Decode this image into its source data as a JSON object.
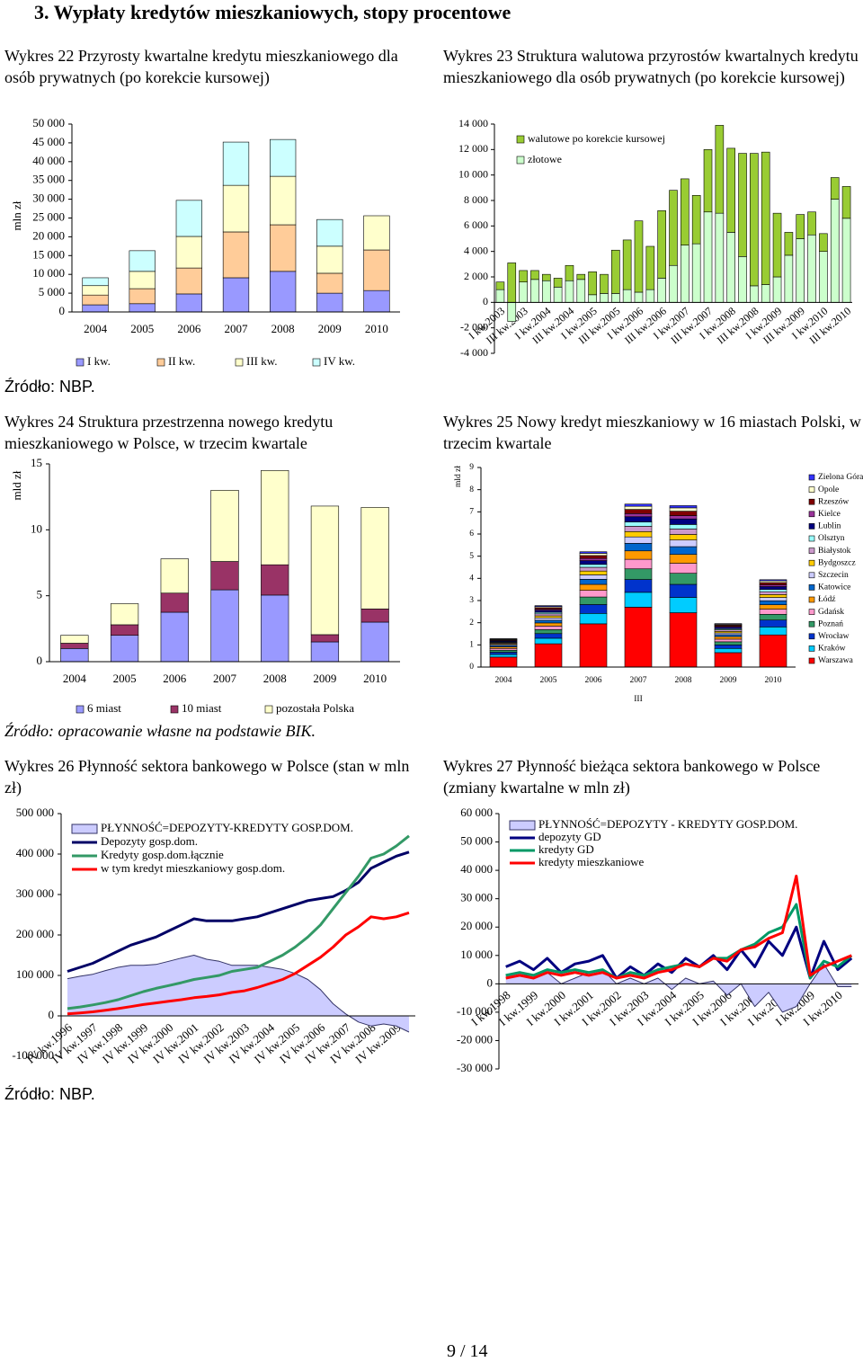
{
  "title": "3.  Wypłaty kredytów mieszkaniowych, stopy procentowe",
  "page_number": "9 / 14",
  "chart_data": [
    {
      "type": "bar",
      "stacked": true,
      "title": "Wykres 22 Przyrosty kwartalne kredytu mieszkaniowego dla osób prywatnych (po korekcie kursowej)",
      "source": "Źródło: NBP.",
      "y_label": "mln zł",
      "categories": [
        "2004",
        "2005",
        "2006",
        "2007",
        "2008",
        "2009",
        "2010"
      ],
      "series": [
        {
          "name": "I kw.",
          "color": "#9999ff",
          "values": [
            1900,
            2200,
            4800,
            9100,
            10800,
            5000,
            5700
          ]
        },
        {
          "name": "II kw.",
          "color": "#ffcc99",
          "values": [
            2600,
            4000,
            6900,
            12200,
            12400,
            5300,
            10800
          ]
        },
        {
          "name": "III kw.",
          "color": "#ffffcc",
          "values": [
            2500,
            4600,
            8400,
            12400,
            12900,
            7200,
            9100
          ]
        },
        {
          "name": "IV kw.",
          "color": "#ccffff",
          "values": [
            2100,
            5500,
            9600,
            11500,
            9800,
            7100,
            null
          ]
        }
      ],
      "ylim": [
        0,
        50000
      ],
      "yticks": [
        0,
        {
          "value": 5000,
          "label": "5 000"
        },
        {
          "value": 10000,
          "label": "10 000"
        },
        {
          "value": 15000,
          "label": "15 000"
        },
        {
          "value": 20000,
          "label": "20 000"
        },
        {
          "value": 25000,
          "label": "25 000"
        },
        {
          "value": 30000,
          "label": "30 000"
        },
        {
          "value": 35000,
          "label": "35 000"
        },
        {
          "value": 40000,
          "label": "40 000"
        },
        {
          "value": 45000,
          "label": "45 000"
        },
        {
          "value": 50000,
          "label": "50 000"
        }
      ]
    },
    {
      "type": "bar",
      "stacked": true,
      "title": "Wykres 23 Struktura walutowa przyrostów kwartalnych kredytu mieszkaniowego dla osób prywatnych (po korekcie kursowej)",
      "categories": [
        "I kw.2003",
        null,
        "III kw.2003",
        null,
        "I kw.2004",
        null,
        "III kw.2004",
        null,
        "I kw.2005",
        null,
        "III kw.2005",
        null,
        "I kw.2006",
        null,
        "III kw.2006",
        null,
        "I kw.2007",
        null,
        "III kw.2007",
        null,
        "I kw.2008",
        null,
        "III kw.2008",
        null,
        "I kw.2009",
        null,
        "III kw.2009",
        null,
        "I kw.2010",
        null,
        "III kw.2010"
      ],
      "series": [
        {
          "name": "złotowe",
          "color": "#ccffcc",
          "values": [
            1000,
            -1500,
            1600,
            1800,
            1700,
            1200,
            1700,
            1800,
            600,
            700,
            700,
            1000,
            800,
            1000,
            1900,
            2900,
            4500,
            4600,
            7100,
            7000,
            5500,
            3600,
            1300,
            1400,
            2000,
            3700,
            5000,
            5300,
            4000,
            8100,
            6600
          ]
        },
        {
          "name": "walutowe po korekcie kursowej",
          "color": "#99cc33",
          "values": [
            600,
            3100,
            900,
            700,
            500,
            700,
            1200,
            400,
            1800,
            1500,
            3400,
            3900,
            5600,
            3400,
            5300,
            5900,
            5200,
            3800,
            4900,
            6900,
            6600,
            8100,
            10400,
            10400,
            5000,
            1800,
            1900,
            1800,
            1400,
            1700,
            2500
          ]
        }
      ],
      "ylim": [
        -4000,
        14000
      ],
      "yticks": [
        {
          "value": -4000,
          "label": "-4 000"
        },
        {
          "value": -2000,
          "label": "-2 000"
        },
        0,
        {
          "value": 2000,
          "label": "2 000"
        },
        {
          "value": 4000,
          "label": "4 000"
        },
        {
          "value": 6000,
          "label": "6 000"
        },
        {
          "value": 8000,
          "label": "8 000"
        },
        {
          "value": 10000,
          "label": "10 000"
        },
        {
          "value": 12000,
          "label": "12 000"
        },
        {
          "value": 14000,
          "label": "14 000"
        }
      ]
    },
    {
      "type": "bar",
      "stacked": true,
      "title": "Wykres 24 Struktura przestrzenna nowego kredytu mieszkaniowego w Polsce, w trzecim kwartale",
      "source": "Źródło: opracowanie własne na podstawie BIK.",
      "y_label": "mld zł",
      "categories": [
        "2004",
        "2005",
        "2006",
        "2007",
        "2008",
        "2009",
        "2010"
      ],
      "series": [
        {
          "name": "6 miast",
          "color": "#9999ff",
          "values": [
            1.0,
            2.0,
            3.75,
            5.45,
            5.05,
            1.5,
            3.0
          ]
        },
        {
          "name": "10 miast",
          "color": "#993366",
          "values": [
            0.4,
            0.8,
            1.45,
            2.15,
            2.3,
            0.55,
            1.0
          ]
        },
        {
          "name": "pozostała Polska",
          "color": "#ffffcc",
          "values": [
            0.6,
            1.6,
            2.6,
            5.4,
            7.15,
            9.75,
            7.7
          ]
        }
      ],
      "ylim": [
        0,
        15
      ],
      "yticks": [
        0,
        5,
        10,
        15
      ]
    },
    {
      "type": "bar",
      "stacked": true,
      "title": "Wykres 25 Nowy kredyt mieszkaniowy w 16 miastach Polski, w trzecim kwartale",
      "y_label": "mld zł",
      "x_label": "III",
      "categories": [
        "2004",
        "2005",
        "2006",
        "2007",
        "2008",
        "2009",
        "2010"
      ],
      "series": [
        {
          "name": "Warszawa",
          "color": "#ff0000",
          "values": [
            0.45,
            1.05,
            1.95,
            2.7,
            2.45,
            0.65,
            1.45
          ]
        },
        {
          "name": "Kraków",
          "color": "#00ccff",
          "values": [
            0.12,
            0.25,
            0.47,
            0.67,
            0.69,
            0.19,
            0.36
          ]
        },
        {
          "name": "Wrocław",
          "color": "#0033cc",
          "values": [
            0.1,
            0.21,
            0.4,
            0.58,
            0.59,
            0.16,
            0.31
          ]
        },
        {
          "name": "Poznań",
          "color": "#339966",
          "values": [
            0.09,
            0.18,
            0.34,
            0.48,
            0.5,
            0.14,
            0.26
          ]
        },
        {
          "name": "Gdańsk",
          "color": "#ff99cc",
          "values": [
            0.08,
            0.16,
            0.3,
            0.43,
            0.45,
            0.12,
            0.23
          ]
        },
        {
          "name": "Łódź",
          "color": "#ff9900",
          "values": [
            0.07,
            0.14,
            0.27,
            0.38,
            0.4,
            0.11,
            0.2
          ]
        },
        {
          "name": "Katowice",
          "color": "#0066cc",
          "values": [
            0.06,
            0.12,
            0.23,
            0.34,
            0.35,
            0.09,
            0.18
          ]
        },
        {
          "name": "Szczecin",
          "color": "#ccccff",
          "values": [
            0.05,
            0.11,
            0.2,
            0.29,
            0.3,
            0.08,
            0.15
          ]
        },
        {
          "name": "Bydgoszcz",
          "color": "#ffcc00",
          "values": [
            0.04,
            0.09,
            0.17,
            0.24,
            0.25,
            0.07,
            0.13
          ]
        },
        {
          "name": "Białystok",
          "color": "#cc99cc",
          "values": [
            0.04,
            0.09,
            0.17,
            0.24,
            0.25,
            0.07,
            0.13
          ]
        },
        {
          "name": "Olsztyn",
          "color": "#99ffff",
          "values": [
            0.03,
            0.07,
            0.13,
            0.19,
            0.2,
            0.05,
            0.1
          ]
        },
        {
          "name": "Lublin",
          "color": "#000080",
          "values": [
            0.04,
            0.09,
            0.17,
            0.24,
            0.25,
            0.07,
            0.13
          ]
        },
        {
          "name": "Kielce",
          "color": "#993399",
          "values": [
            0.03,
            0.05,
            0.1,
            0.14,
            0.15,
            0.04,
            0.08
          ]
        },
        {
          "name": "Rzeszów",
          "color": "#800000",
          "values": [
            0.03,
            0.07,
            0.13,
            0.19,
            0.2,
            0.05,
            0.1
          ]
        },
        {
          "name": "Opole",
          "color": "#ffffcc",
          "values": [
            0.03,
            0.05,
            0.1,
            0.14,
            0.15,
            0.04,
            0.08
          ]
        },
        {
          "name": "Zielona Góra",
          "color": "#3333ff",
          "values": [
            0.02,
            0.04,
            0.07,
            0.1,
            0.1,
            0.03,
            0.05
          ]
        }
      ],
      "ylim": [
        0,
        9
      ],
      "yticks": [
        0,
        1,
        2,
        3,
        4,
        5,
        6,
        7,
        8,
        9
      ]
    },
    {
      "type": "line",
      "title": "Wykres 26 Płynność sektora bankowego w Polsce (stan w mln zł)",
      "source": "Źródło: NBP.",
      "categories": [
        "IV kw.1996",
        null,
        "IV kw.1997",
        null,
        "IV kw.1998",
        null,
        "IV kw.1999",
        null,
        "IV kw.2000",
        null,
        "IV kw.2001",
        null,
        "IV kw.2002",
        null,
        "IV kw.2003",
        null,
        "IV kw.2004",
        null,
        "IV kw.2005",
        null,
        "IV kw.2006",
        null,
        "IV kw.2007",
        null,
        "IV kw.2008",
        null,
        "IV kw.2009",
        null
      ],
      "series": [
        {
          "name": "PŁYNNOŚĆ=DEPOZYTY-KREDYTY GOSP.DOM.",
          "area": true,
          "fill": "#ccccff",
          "color": "#333366",
          "values": [
            92000,
            98000,
            103000,
            112000,
            120000,
            125000,
            125000,
            127000,
            135000,
            143000,
            150000,
            140000,
            135000,
            125000,
            125000,
            125000,
            120000,
            115000,
            105000,
            90000,
            65000,
            30000,
            5000,
            -15000,
            -25000,
            -20000,
            -25000,
            -40000
          ]
        },
        {
          "name": "Depozyty gosp.dom.",
          "color": "#000066",
          "values": [
            110000,
            120000,
            130000,
            145000,
            160000,
            175000,
            185000,
            195000,
            210000,
            225000,
            240000,
            235000,
            235000,
            235000,
            240000,
            245000,
            255000,
            265000,
            275000,
            285000,
            290000,
            295000,
            310000,
            330000,
            365000,
            380000,
            395000,
            405000
          ]
        },
        {
          "name": "Kredyty gosp.dom.łącznie",
          "color": "#339966",
          "values": [
            18000,
            22000,
            27000,
            33000,
            40000,
            50000,
            60000,
            68000,
            75000,
            82000,
            90000,
            95000,
            100000,
            110000,
            115000,
            120000,
            135000,
            150000,
            170000,
            195000,
            225000,
            265000,
            305000,
            345000,
            390000,
            400000,
            420000,
            445000
          ]
        },
        {
          "name": "w tym kredyt mieszkaniowy gosp.dom.",
          "color": "#ff0000",
          "values": [
            5000,
            7000,
            10000,
            14000,
            18000,
            23000,
            28000,
            32000,
            36000,
            40000,
            45000,
            48000,
            52000,
            58000,
            62000,
            70000,
            80000,
            90000,
            105000,
            125000,
            145000,
            170000,
            200000,
            220000,
            245000,
            240000,
            245000,
            255000
          ]
        }
      ],
      "ylim": [
        -100000,
        500000
      ],
      "yticks": [
        {
          "value": -100000,
          "label": "-100 000"
        },
        0,
        {
          "value": 100000,
          "label": "100 000"
        },
        {
          "value": 200000,
          "label": "200 000"
        },
        {
          "value": 300000,
          "label": "300 000"
        },
        {
          "value": 400000,
          "label": "400 000"
        },
        {
          "value": 500000,
          "label": "500 000"
        }
      ]
    },
    {
      "type": "line",
      "title": "Wykres 27 Płynność bieżąca sektora bankowego w Polsce (zmiany kwartalne w mln zł)",
      "categories": [
        "I kw.1998",
        null,
        "I kw.1999",
        null,
        "I kw.2000",
        null,
        "I kw.2001",
        null,
        "I kw.2002",
        null,
        "I kw.2003",
        null,
        "I kw.2004",
        null,
        "I kw.2005",
        null,
        "I kw.2006",
        null,
        "I kw.2007",
        null,
        "I kw.2008",
        null,
        "I kw.2009",
        null,
        "I kw.2010",
        null
      ],
      "series": [
        {
          "name": "PŁYNNOŚĆ=DEPOZYTY - KREDYTY GOSP.DOM.",
          "area": true,
          "fill": "#ccccff",
          "color": "#333366",
          "values": [
            3000,
            4000,
            2000,
            4000,
            0,
            2000,
            4000,
            5000,
            0,
            2000,
            0,
            2000,
            -2000,
            2000,
            0,
            1000,
            -4000,
            0,
            -8000,
            -3000,
            -10000,
            -8000,
            0,
            7000,
            -1000,
            -1000
          ]
        },
        {
          "name": "depozyty GD",
          "color": "#000080",
          "values": [
            6000,
            8000,
            5000,
            9000,
            4000,
            7000,
            8000,
            10000,
            2000,
            6000,
            3000,
            7000,
            4000,
            9000,
            6000,
            10000,
            5000,
            12000,
            6000,
            15000,
            10000,
            20000,
            2000,
            15000,
            5000,
            9000
          ]
        },
        {
          "name": "kredyty GD",
          "color": "#009966",
          "values": [
            3000,
            4000,
            3000,
            5000,
            4000,
            5000,
            4000,
            5000,
            2000,
            4000,
            3000,
            5000,
            6000,
            7000,
            6000,
            9000,
            9000,
            12000,
            14000,
            18000,
            20000,
            28000,
            2000,
            8000,
            6000,
            10000
          ]
        },
        {
          "name": "kredyty mieszkaniowe",
          "color": "#ff0000",
          "values": [
            2000,
            3000,
            2000,
            4000,
            3000,
            4000,
            3000,
            4000,
            2000,
            3000,
            2000,
            4000,
            5000,
            7000,
            6000,
            9000,
            8000,
            12000,
            13000,
            16000,
            18000,
            38000,
            3000,
            6000,
            8000,
            10000
          ]
        }
      ],
      "ylim": [
        -30000,
        60000
      ],
      "yticks": [
        {
          "value": -30000,
          "label": "-30 000"
        },
        {
          "value": -20000,
          "label": "-20 000"
        },
        {
          "value": -10000,
          "label": "-10 000"
        },
        0,
        {
          "value": 10000,
          "label": "10 000"
        },
        {
          "value": 20000,
          "label": "20 000"
        },
        {
          "value": 30000,
          "label": "30 000"
        },
        {
          "value": 40000,
          "label": "40 000"
        },
        {
          "value": 50000,
          "label": "50 000"
        },
        {
          "value": 60000,
          "label": "60 000"
        }
      ]
    }
  ]
}
